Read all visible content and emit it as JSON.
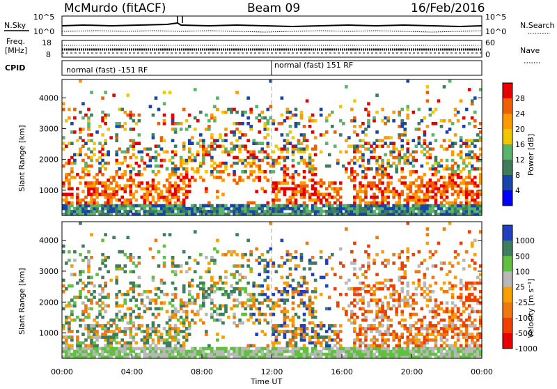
{
  "header": {
    "station": "McMurdo (fitACF)",
    "beam": "Beam 09",
    "date": "16/Feb/2016"
  },
  "top_panels": {
    "nsky_label": "N.Sky",
    "nsearch_label": "N.Search",
    "nsky_ticks": [
      "10^5",
      "10^0"
    ],
    "nsearch_ticks": [
      "10^5",
      "10^0"
    ],
    "freq_label_line1": "Freq.",
    "freq_label_line2": "[MHz]",
    "freq_ticks": [
      "18",
      "8"
    ],
    "nave_label": "Nave",
    "nave_ticks": [
      "60",
      "0"
    ],
    "cpid_label": "CPID",
    "cpid_segments": [
      "normal (fast) -151 RF",
      "normal (fast) 151 RF"
    ]
  },
  "chart_data": [
    {
      "type": "heatmap",
      "title": "",
      "xlabel": "",
      "ylabel": "Slant Range [km]",
      "ylim": [
        180,
        4600
      ],
      "yticks": [
        "1000",
        "2000",
        "3000",
        "4000"
      ],
      "colorbar": {
        "label": "Power [dB]",
        "ticks": [
          "28",
          "24",
          "20",
          "16",
          "12",
          "8",
          "4"
        ],
        "colors": [
          "#e80000",
          "#f06000",
          "#ff9a00",
          "#f0c800",
          "#59b46e",
          "#3e7c5a",
          "#1846a8",
          "#0000ff"
        ]
      },
      "note": "radar backscatter power versus time and slant range"
    },
    {
      "type": "heatmap",
      "title": "",
      "xlabel": "Time UT",
      "ylabel": "Slant Range [km]",
      "ylim": [
        180,
        4600
      ],
      "yticks": [
        "1000",
        "2000",
        "3000",
        "4000"
      ],
      "xticks": [
        "00:00",
        "04:00",
        "08:00",
        "12:00",
        "16:00",
        "20:00",
        "00:00"
      ],
      "colorbar": {
        "label": "Velocity [m s⁻¹]",
        "ticks": [
          "1000",
          "500",
          "100",
          "25",
          "-25",
          "-100",
          "-500",
          "-1000"
        ],
        "colors": [
          "#2040c0",
          "#3c7e5e",
          "#60c040",
          "#b8b8b8",
          "#f8a000",
          "#f07810",
          "#f04000",
          "#e80000"
        ]
      }
    }
  ]
}
